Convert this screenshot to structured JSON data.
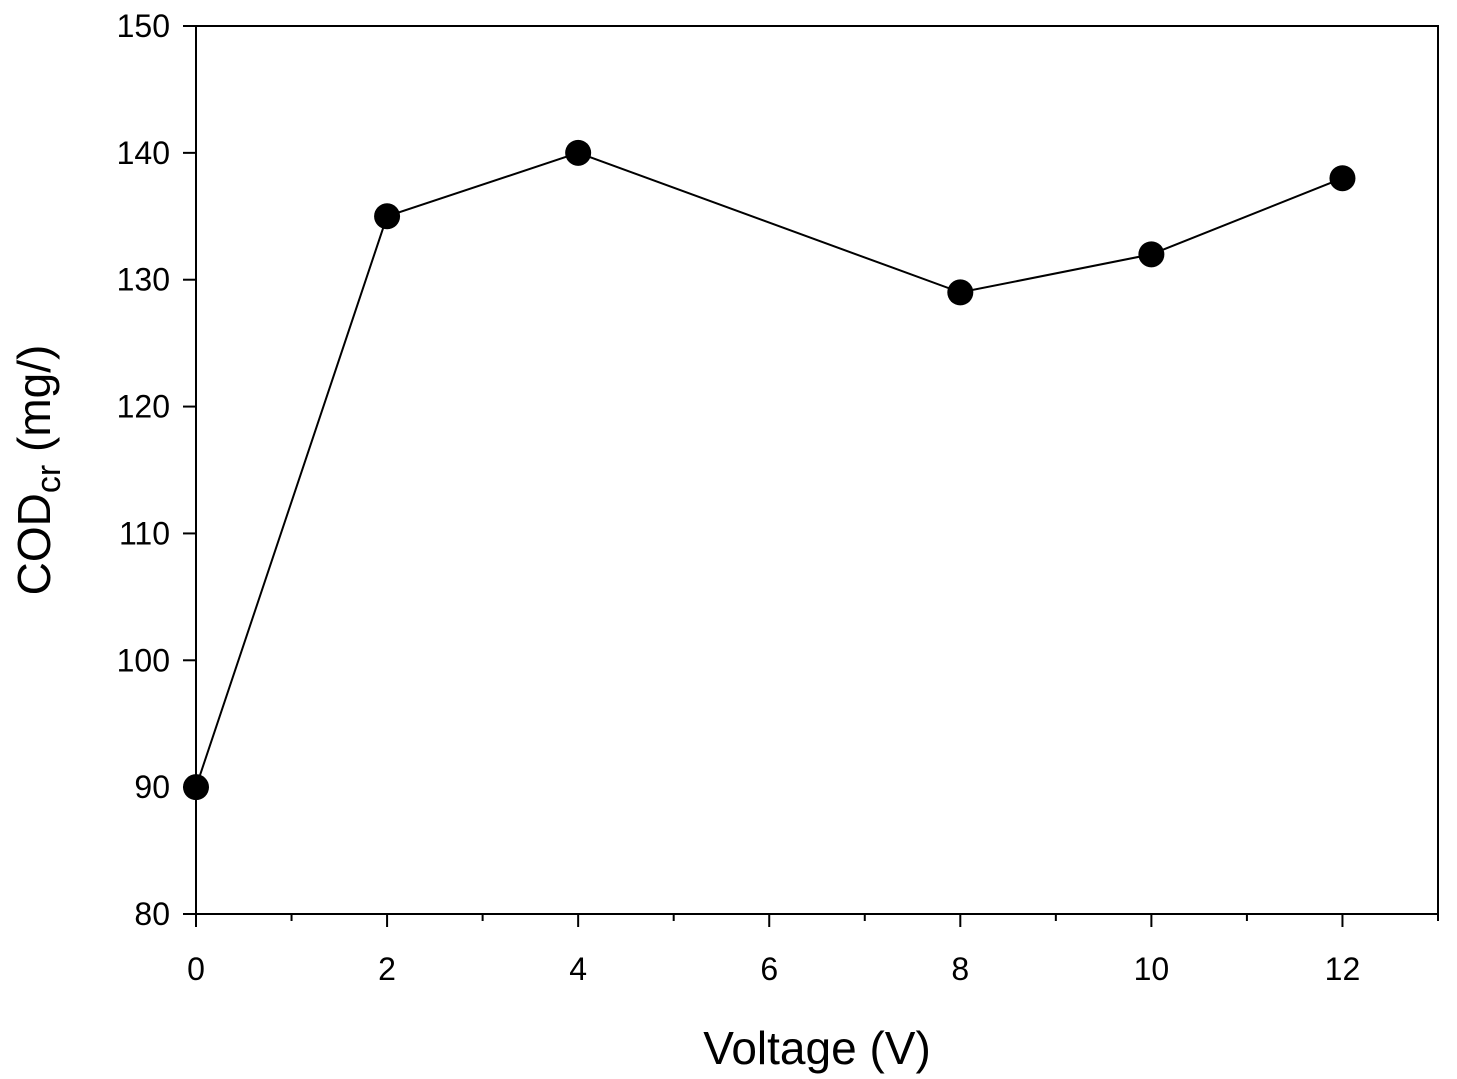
{
  "chart_data": {
    "type": "line",
    "xlabel": "Voltage (V)",
    "ylabel": {
      "main": "COD",
      "subscript": "cr",
      "suffix": " (mg/)"
    },
    "xlim": [
      0,
      13
    ],
    "ylim": [
      80,
      150
    ],
    "xticks": [
      0,
      2,
      4,
      6,
      8,
      10,
      12
    ],
    "yticks": [
      80,
      90,
      100,
      110,
      120,
      130,
      140,
      150
    ],
    "x_minor_ticks": [
      1,
      3,
      5,
      7,
      9,
      11,
      13
    ],
    "grid": false,
    "legend": "none",
    "series": [
      {
        "marker": "filled-circle",
        "color": "#000000",
        "points": [
          {
            "x": 0,
            "y": 90
          },
          {
            "x": 2,
            "y": 135
          },
          {
            "x": 4,
            "y": 140
          },
          {
            "x": 8,
            "y": 129
          },
          {
            "x": 10,
            "y": 132
          },
          {
            "x": 12,
            "y": 138
          }
        ]
      }
    ]
  }
}
